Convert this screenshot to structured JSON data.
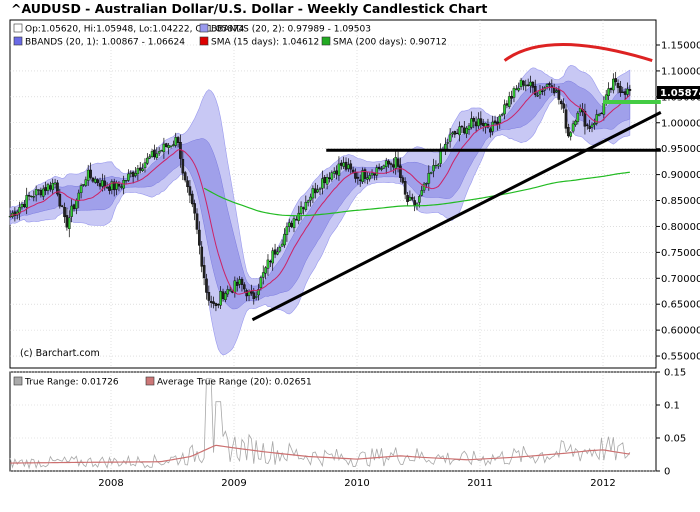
{
  "title": "^AUDUSD - Australian Dollar/U.S. Dollar - Weekly Candlestick Chart",
  "watermark": "(c) Barchart.com",
  "price_legend": [
    {
      "swatch": "#ffffff",
      "text": "Op:1.05620, Hi:1.05948, Lo:1.04222, Cl:1.05874"
    },
    {
      "swatch": "#9999ee",
      "text": "BBANDS (20, 2): 0.97989 - 1.09503"
    },
    {
      "swatch": "#6a6ae6",
      "text": "BBANDS (20, 1): 1.00867 - 1.06624"
    },
    {
      "swatch": "#dd0000",
      "text": "SMA (15 days): 1.04612"
    },
    {
      "swatch": "#22aa22",
      "text": "SMA (200 days): 0.90712"
    }
  ],
  "ind_legend": [
    {
      "swatch": "#aaaaaa",
      "text": "True Range: 0.01726"
    },
    {
      "swatch": "#cc7777",
      "text": "Average True Range (20): 0.02651"
    }
  ],
  "last_price_label": "1.05874",
  "chart_data": [
    {
      "type": "candlestick",
      "title": "^AUDUSD - Australian Dollar/U.S. Dollar - Weekly Candlestick Chart",
      "x_labels": [
        "2008",
        "2009",
        "2010",
        "2011",
        "2012"
      ],
      "ylim": [
        0.53,
        1.17
      ],
      "y_ticks": [
        "0.55000",
        "0.60000",
        "0.65000",
        "0.70000",
        "0.75000",
        "0.80000",
        "0.85000",
        "0.90000",
        "0.95000",
        "1.00000",
        "1.05000",
        "1.10000",
        "1.15000"
      ],
      "close_path": [
        [
          2007.18,
          0.82
        ],
        [
          2007.35,
          0.86
        ],
        [
          2007.55,
          0.885
        ],
        [
          2007.63,
          0.8
        ],
        [
          2007.8,
          0.9
        ],
        [
          2007.95,
          0.88
        ],
        [
          2008.05,
          0.875
        ],
        [
          2008.25,
          0.92
        ],
        [
          2008.45,
          0.955
        ],
        [
          2008.55,
          0.97
        ],
        [
          2008.58,
          0.9
        ],
        [
          2008.68,
          0.82
        ],
        [
          2008.78,
          0.67
        ],
        [
          2008.85,
          0.64
        ],
        [
          2008.9,
          0.67
        ],
        [
          2009.05,
          0.69
        ],
        [
          2009.15,
          0.66
        ],
        [
          2009.3,
          0.74
        ],
        [
          2009.45,
          0.8
        ],
        [
          2009.55,
          0.84
        ],
        [
          2009.72,
          0.89
        ],
        [
          2009.88,
          0.92
        ],
        [
          2010.0,
          0.895
        ],
        [
          2010.15,
          0.91
        ],
        [
          2010.32,
          0.925
        ],
        [
          2010.4,
          0.85
        ],
        [
          2010.48,
          0.84
        ],
        [
          2010.6,
          0.9
        ],
        [
          2010.75,
          0.97
        ],
        [
          2010.87,
          0.99
        ],
        [
          2011.0,
          1.005
        ],
        [
          2011.1,
          0.99
        ],
        [
          2011.22,
          1.04
        ],
        [
          2011.35,
          1.08
        ],
        [
          2011.47,
          1.06
        ],
        [
          2011.58,
          1.08
        ],
        [
          2011.67,
          1.03
        ],
        [
          2011.72,
          0.975
        ],
        [
          2011.8,
          1.03
        ],
        [
          2011.88,
          0.99
        ],
        [
          2011.98,
          1.02
        ],
        [
          2012.08,
          1.075
        ],
        [
          2012.2,
          1.06
        ]
      ],
      "series": [
        {
          "name": "BBANDS (20, 2)",
          "last": [
            0.97989,
            1.09503
          ]
        },
        {
          "name": "BBANDS (20, 1)",
          "last": [
            1.00867,
            1.06624
          ]
        },
        {
          "name": "SMA (15 days)",
          "last": 1.04612
        },
        {
          "name": "SMA (200 days)",
          "last": 0.90712
        }
      ],
      "annotations": {
        "support_line": [
          [
            2009.15,
            0.62
          ],
          [
            2012.47,
            1.02
          ]
        ],
        "horizontal_line_1": {
          "from": 2009.75,
          "to": 2012.47,
          "y": 0.947
        },
        "horizontal_line_2": {
          "from": 2012.0,
          "to": 2012.47,
          "y": 1.04
        },
        "arc_peak": [
          [
            2011.2,
            1.12
          ],
          [
            2011.55,
            1.155
          ],
          [
            2012.4,
            1.12
          ]
        ],
        "last_close": 1.05874
      }
    },
    {
      "type": "line",
      "x_labels": [
        "2008",
        "2009",
        "2010",
        "2011",
        "2012"
      ],
      "ylim": [
        0,
        0.15
      ],
      "y_ticks": [
        "0",
        "0.05",
        "0.1",
        "0.15"
      ],
      "series": [
        {
          "name": "True Range",
          "last": 0.01726
        },
        {
          "name": "Average True Range (20)",
          "last": 0.02651
        }
      ],
      "atr_path": [
        [
          2007.18,
          0.012
        ],
        [
          2007.7,
          0.013
        ],
        [
          2008.4,
          0.014
        ],
        [
          2008.65,
          0.022
        ],
        [
          2008.85,
          0.039
        ],
        [
          2009.0,
          0.035
        ],
        [
          2009.25,
          0.029
        ],
        [
          2009.6,
          0.022
        ],
        [
          2010.0,
          0.018
        ],
        [
          2010.35,
          0.023
        ],
        [
          2010.5,
          0.021
        ],
        [
          2010.9,
          0.017
        ],
        [
          2011.3,
          0.021
        ],
        [
          2011.7,
          0.027
        ],
        [
          2011.9,
          0.031
        ],
        [
          2012.0,
          0.032
        ],
        [
          2012.2,
          0.026
        ]
      ]
    }
  ]
}
